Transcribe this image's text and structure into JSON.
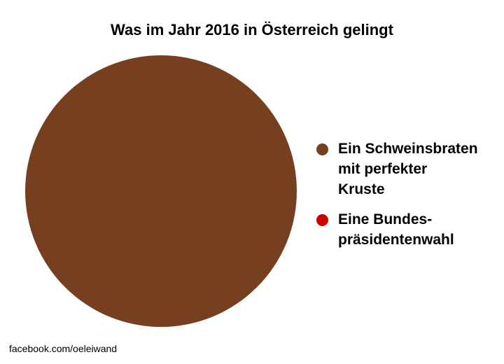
{
  "chart_data": {
    "type": "pie",
    "title": "Was im Jahr 2016 in Österreich gelingt",
    "categories": [
      "Ein Schweinsbraten\nmit perfekter\nKruste",
      "Eine Bundes-\npräsidentenwahl"
    ],
    "values": [
      100,
      0
    ],
    "colors": [
      "#763f20",
      "#cc0000"
    ],
    "legend": "right"
  },
  "footer": {
    "credit": "facebook.com/oeleiwand"
  }
}
